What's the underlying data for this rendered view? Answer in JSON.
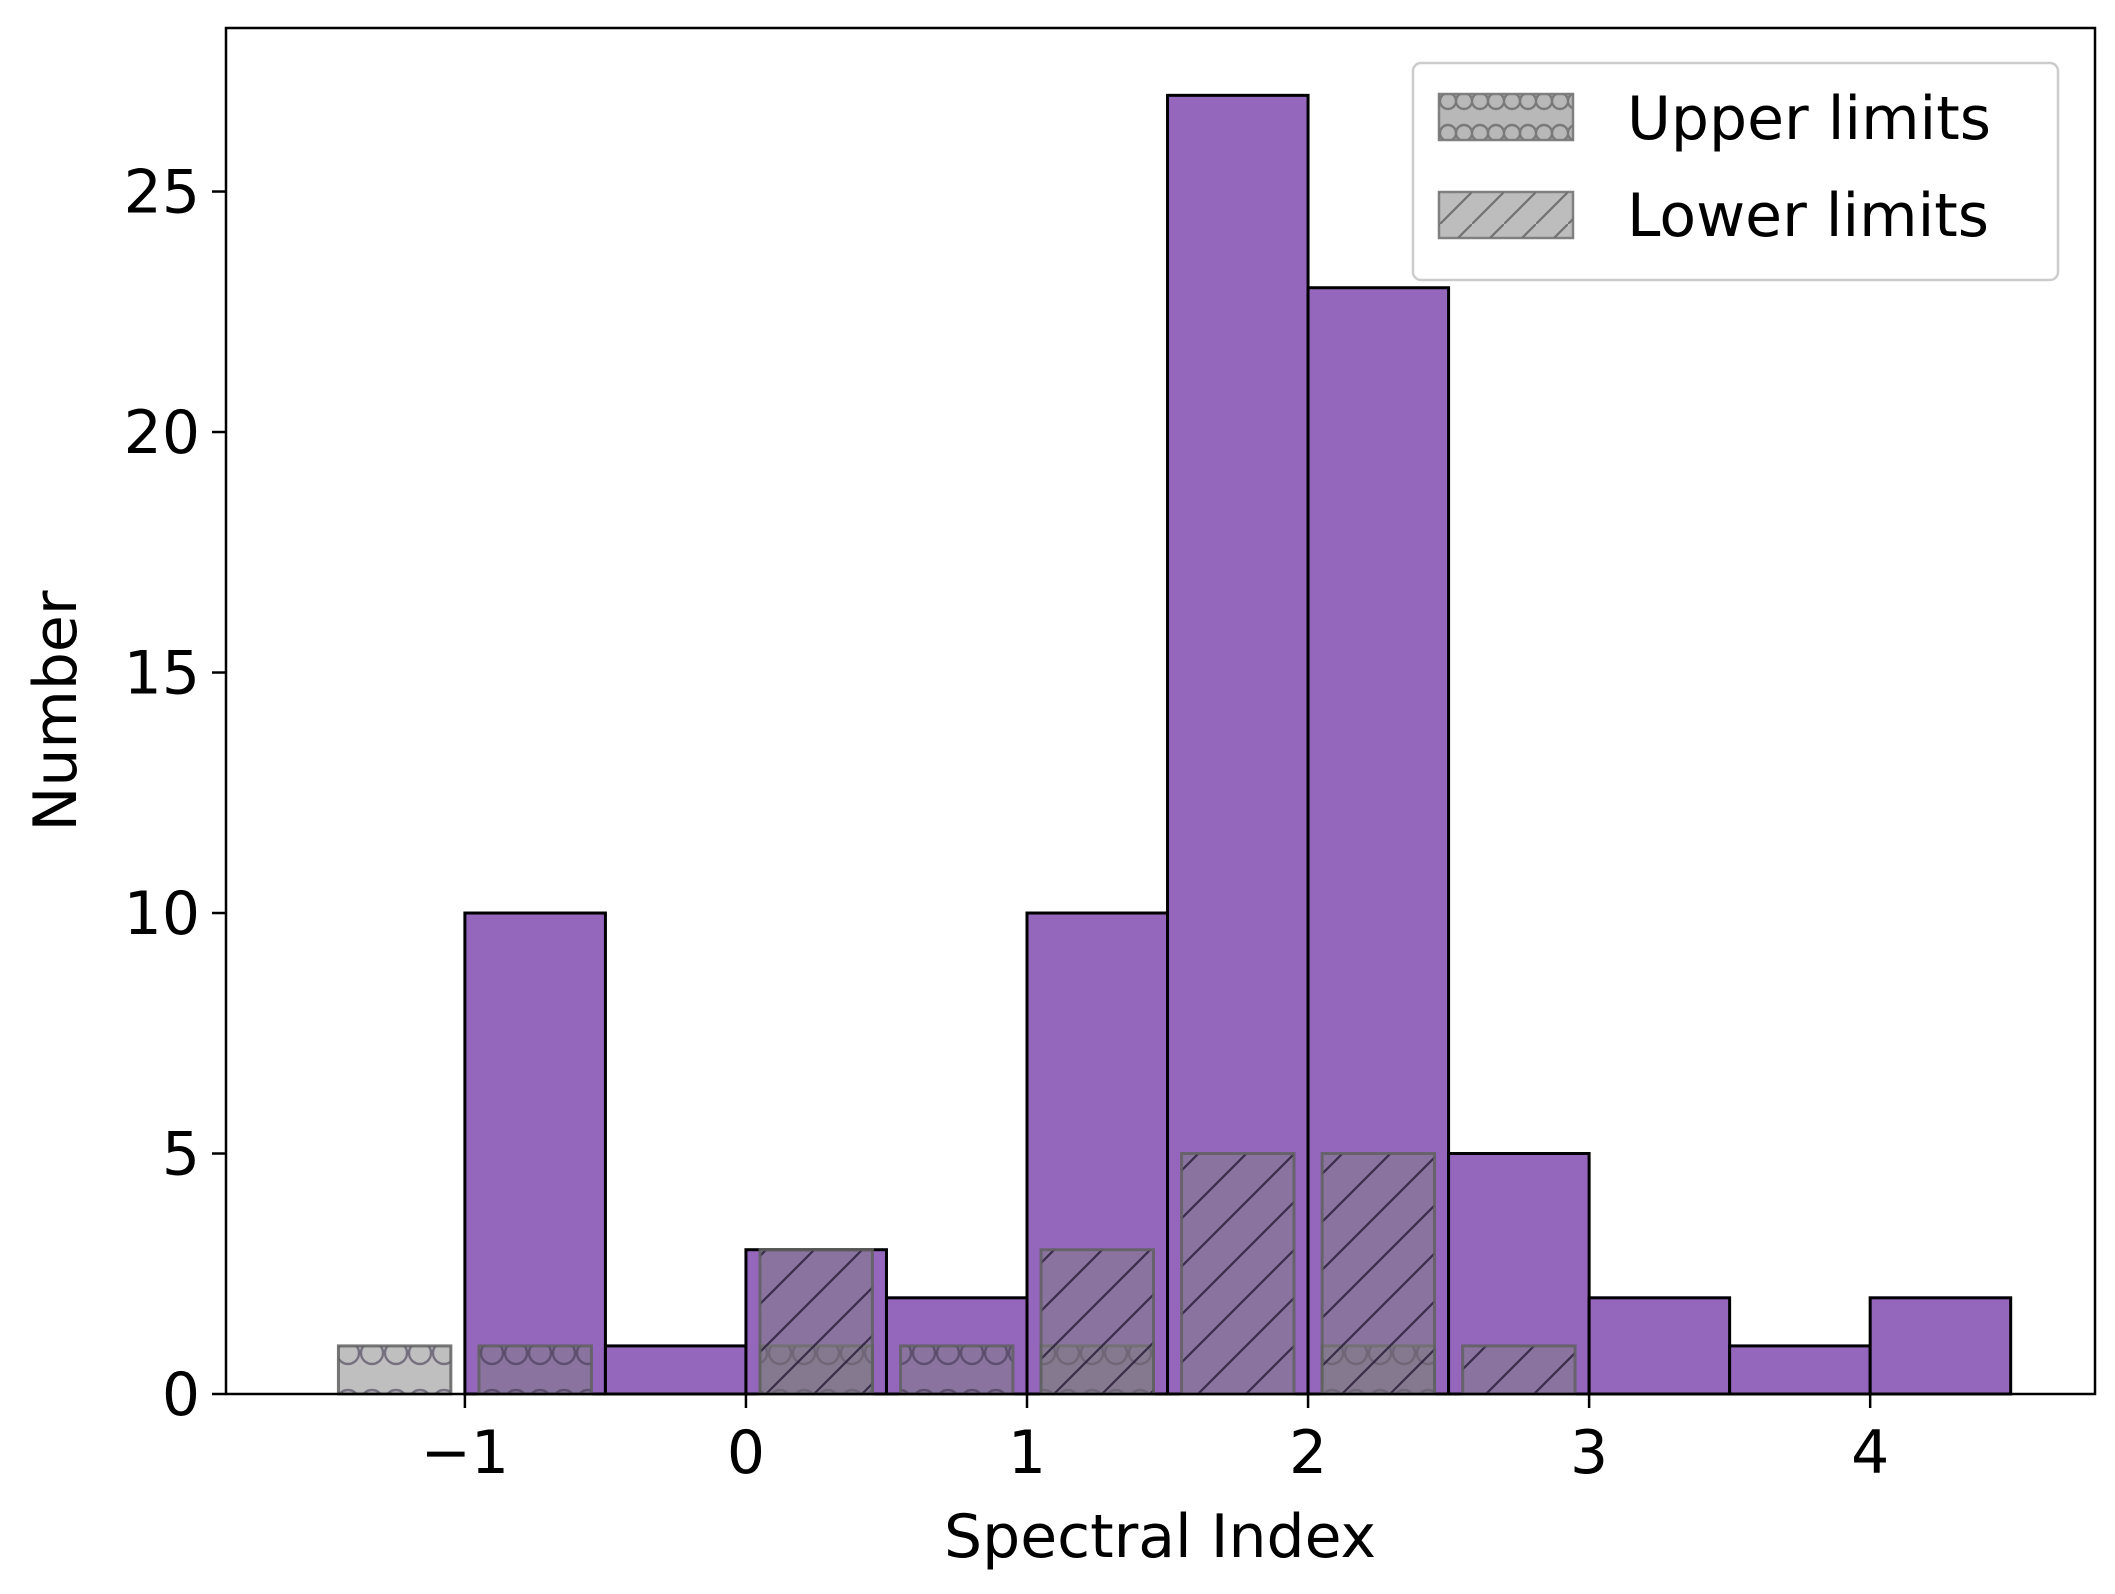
{
  "chart_data": {
    "type": "bar",
    "xlabel": "Spectral Index",
    "ylabel": "Number",
    "xlim": [
      -1.85,
      4.8
    ],
    "ylim": [
      0,
      28.4
    ],
    "grid": false,
    "legend_position": "top-right",
    "x_ticks": [
      {
        "value": -1,
        "label": "−1"
      },
      {
        "value": 0,
        "label": "0"
      },
      {
        "value": 1,
        "label": "1"
      },
      {
        "value": 2,
        "label": "2"
      },
      {
        "value": 3,
        "label": "3"
      },
      {
        "value": 4,
        "label": "4"
      }
    ],
    "y_ticks": [
      {
        "value": 0,
        "label": "0"
      },
      {
        "value": 5,
        "label": "5"
      },
      {
        "value": 10,
        "label": "10"
      },
      {
        "value": 15,
        "label": "15"
      },
      {
        "value": 20,
        "label": "20"
      },
      {
        "value": 25,
        "label": "25"
      }
    ],
    "series": [
      {
        "name": "",
        "color": "#9467bd",
        "bins": [
          {
            "x0": -1.0,
            "x1": -0.5,
            "value": 10
          },
          {
            "x0": -0.5,
            "x1": 0.0,
            "value": 1
          },
          {
            "x0": 0.0,
            "x1": 0.5,
            "value": 3
          },
          {
            "x0": 0.5,
            "x1": 1.0,
            "value": 2
          },
          {
            "x0": 1.0,
            "x1": 1.5,
            "value": 10
          },
          {
            "x0": 1.5,
            "x1": 2.0,
            "value": 27
          },
          {
            "x0": 2.0,
            "x1": 2.5,
            "value": 23
          },
          {
            "x0": 2.5,
            "x1": 3.0,
            "value": 5
          },
          {
            "x0": 3.0,
            "x1": 3.5,
            "value": 2
          },
          {
            "x0": 3.5,
            "x1": 4.0,
            "value": 1
          },
          {
            "x0": 4.0,
            "x1": 4.5,
            "value": 2
          }
        ]
      },
      {
        "name": "Upper limits",
        "color": "#808080",
        "hatch": "circles",
        "bins": [
          {
            "x0": -1.45,
            "x1": -1.05,
            "value": 1
          },
          {
            "x0": -0.95,
            "x1": -0.55,
            "value": 1
          },
          {
            "x0": 0.05,
            "x1": 0.45,
            "value": 1
          },
          {
            "x0": 0.55,
            "x1": 0.95,
            "value": 1
          },
          {
            "x0": 1.05,
            "x1": 1.45,
            "value": 1
          },
          {
            "x0": 2.05,
            "x1": 2.45,
            "value": 1
          }
        ]
      },
      {
        "name": "Lower limits",
        "color": "#808080",
        "hatch": "diagonal",
        "bins": [
          {
            "x0": 0.05,
            "x1": 0.45,
            "value": 3
          },
          {
            "x0": 1.05,
            "x1": 1.45,
            "value": 3
          },
          {
            "x0": 1.55,
            "x1": 1.95,
            "value": 5
          },
          {
            "x0": 2.05,
            "x1": 2.45,
            "value": 5
          },
          {
            "x0": 2.55,
            "x1": 2.95,
            "value": 1
          }
        ]
      }
    ]
  }
}
